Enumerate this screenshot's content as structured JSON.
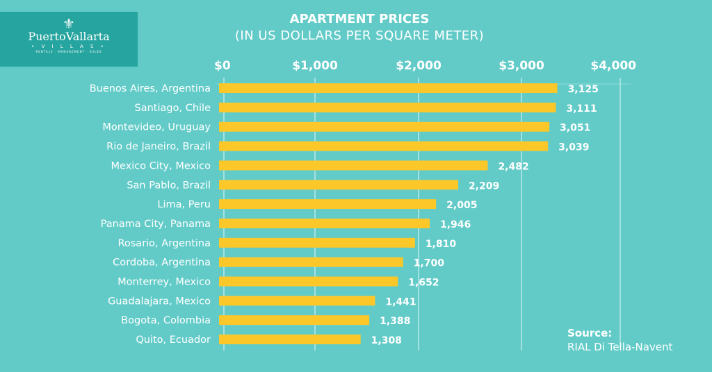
{
  "logo": {
    "name": "PuertoVallarta",
    "sub": "• V I L L A S •",
    "tagline": "RENTALS · MANAGEMENT · SALES"
  },
  "chart_data": {
    "type": "bar",
    "orientation": "horizontal",
    "title": "APARTMENT PRICES",
    "subtitle": "(IN US DOLLARS PER SQUARE METER)",
    "x_ticks": [
      "$0",
      "$1,000",
      "$2,000",
      "$3,000",
      "$4,000"
    ],
    "xlim": [
      0,
      4000
    ],
    "grid": true,
    "bar_color": "#fcc829",
    "categories": [
      "Buenos Aires, Argentina",
      "Santiago, Chile",
      "Montevideo, Uruguay",
      "Rio de Janeiro, Brazil",
      "Mexico City, Mexico",
      "San Pablo, Brazil",
      "Lima, Peru",
      "Panama City, Panama",
      "Rosario, Argentina",
      "Cordoba, Argentina",
      "Monterrey, Mexico",
      "Guadalajara, Mexico",
      "Bogota, Colombia",
      "Quito, Ecuador"
    ],
    "values": [
      3125,
      3111,
      3051,
      3039,
      2482,
      2209,
      2005,
      1946,
      1810,
      1700,
      1652,
      1441,
      1388,
      1308
    ],
    "value_labels": [
      "3,125",
      "3,111",
      "3,051",
      "3,039",
      "2,482",
      "2,209",
      "2,005",
      "1,946",
      "1,810",
      "1,700",
      "1,652",
      "1,441",
      "1,388",
      "1,308"
    ]
  },
  "source": {
    "label": "Source:",
    "text": "RIAL Di Tella-Navent"
  }
}
